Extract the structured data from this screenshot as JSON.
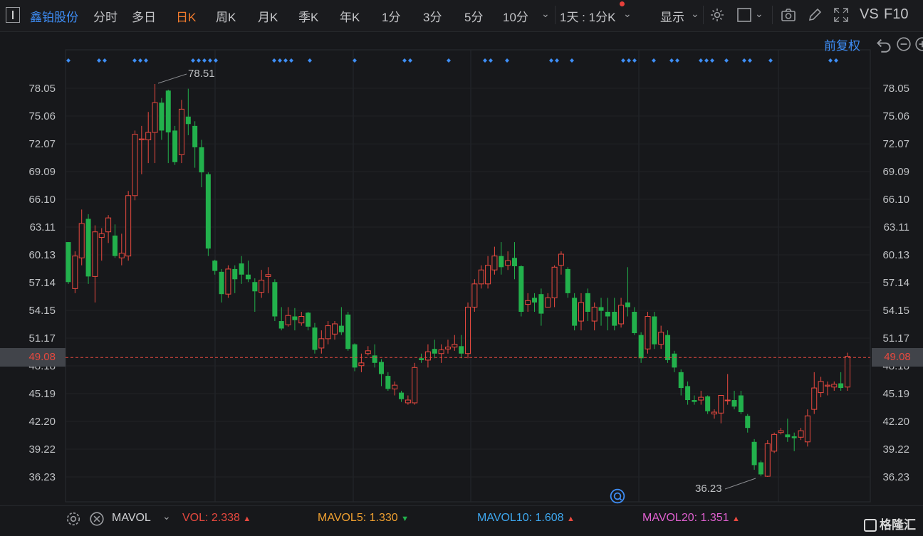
{
  "toolbar": {
    "stock_name": "鑫铂股份",
    "tabs": [
      "分时",
      "多日",
      "日K",
      "周K",
      "月K",
      "季K",
      "年K",
      "1分",
      "3分",
      "5分",
      "10分"
    ],
    "active_tab": "日K",
    "period_select": "1天 : 1分K",
    "display_label": "显示",
    "vs_label": "VS",
    "f10_label": "F10"
  },
  "chart": {
    "adjust_label": "前复权",
    "current_price": "49.08",
    "high_label": "78.51",
    "low_label": "36.23",
    "y_ticks": [
      "78.05",
      "75.06",
      "72.07",
      "69.09",
      "66.10",
      "63.11",
      "60.13",
      "57.14",
      "54.15",
      "51.17",
      "48.18",
      "45.19",
      "42.20",
      "39.22",
      "36.23"
    ],
    "colors": {
      "up": "#e8493f",
      "down": "#22b14c",
      "bg": "#17181b",
      "marker": "#3e8ef7"
    }
  },
  "chart_data": {
    "type": "candlestick",
    "ylim": [
      34.8,
      80.5
    ],
    "candles": [
      [
        61.5,
        57.2,
        61.5,
        57.0
      ],
      [
        56.5,
        60.0,
        60.5,
        56.0
      ],
      [
        59.8,
        63.5,
        65.0,
        59.0
      ],
      [
        64.0,
        57.8,
        64.5,
        57.0
      ],
      [
        57.8,
        62.6,
        63.3,
        55.0
      ],
      [
        62.0,
        62.4,
        63.0,
        59.5
      ],
      [
        62.6,
        64.1,
        64.4,
        61.4
      ],
      [
        62.2,
        60.0,
        63.4,
        59.8
      ],
      [
        59.8,
        60.3,
        62.4,
        59.0
      ],
      [
        60.0,
        66.5,
        67.0,
        59.5
      ],
      [
        66.5,
        73.1,
        73.5,
        66.0
      ],
      [
        72.5,
        72.6,
        74.0,
        68.8
      ],
      [
        72.5,
        73.3,
        75.5,
        70.0
      ],
      [
        73.3,
        76.5,
        78.51,
        70.0
      ],
      [
        76.5,
        73.5,
        77.0,
        72.5
      ],
      [
        77.8,
        73.3,
        77.9,
        70.0
      ],
      [
        73.5,
        70.1,
        74.0,
        69.8
      ],
      [
        70.9,
        75.8,
        76.8,
        70.0
      ],
      [
        75.0,
        74.2,
        78.0,
        73.0
      ],
      [
        74.0,
        71.7,
        74.5,
        69.5
      ],
      [
        71.7,
        69.0,
        72.5,
        67.4
      ],
      [
        68.8,
        60.8,
        69.0,
        60.0
      ],
      [
        59.5,
        58.4,
        59.6,
        58.0
      ],
      [
        58.3,
        55.9,
        58.6,
        55.0
      ],
      [
        55.9,
        58.6,
        59.0,
        55.5
      ],
      [
        58.6,
        57.5,
        59.0,
        56.0
      ],
      [
        59.2,
        58.0,
        60.0,
        57.0
      ],
      [
        58.0,
        57.5,
        59.5,
        57.2
      ],
      [
        57.2,
        56.2,
        57.6,
        54.0
      ],
      [
        56.1,
        57.4,
        58.5,
        55.5
      ],
      [
        57.8,
        58.0,
        58.8,
        56.0
      ],
      [
        57.2,
        53.5,
        57.5,
        53.0
      ],
      [
        53.0,
        52.2,
        54.5,
        52.0
      ],
      [
        52.6,
        53.6,
        54.5,
        52.4
      ],
      [
        53.5,
        53.1,
        54.4,
        52.0
      ],
      [
        52.8,
        53.5,
        54.0,
        52.5
      ],
      [
        53.9,
        52.4,
        54.0,
        52.0
      ],
      [
        52.3,
        49.9,
        52.8,
        49.5
      ],
      [
        50.1,
        51.1,
        52.0,
        49.5
      ],
      [
        51.1,
        52.5,
        53.0,
        50.5
      ],
      [
        51.6,
        52.7,
        53.0,
        51.0
      ],
      [
        52.5,
        51.8,
        54.5,
        51.5
      ],
      [
        53.7,
        50.0,
        54.0,
        49.8
      ],
      [
        50.5,
        48.0,
        50.6,
        47.6
      ],
      [
        48.2,
        48.5,
        49.5,
        47.5
      ],
      [
        49.5,
        49.8,
        50.3,
        49.3
      ],
      [
        49.3,
        48.5,
        50.5,
        48.0
      ],
      [
        48.6,
        47.3,
        48.9,
        46.0
      ],
      [
        47.1,
        45.7,
        47.5,
        45.5
      ],
      [
        45.7,
        46.1,
        46.5,
        45.0
      ],
      [
        45.3,
        44.6,
        45.5,
        44.3
      ],
      [
        44.2,
        44.5,
        45.0,
        44.0
      ],
      [
        44.2,
        48.0,
        48.5,
        44.0
      ],
      [
        49.0,
        48.8,
        49.5,
        48.5
      ],
      [
        48.8,
        49.7,
        50.5,
        48.0
      ],
      [
        50.0,
        49.5,
        51.0,
        49.0
      ],
      [
        49.5,
        49.9,
        50.5,
        48.5
      ],
      [
        50.0,
        50.2,
        51.0,
        49.5
      ],
      [
        50.2,
        50.5,
        51.5,
        49.8
      ],
      [
        50.3,
        49.5,
        51.5,
        49.0
      ],
      [
        49.5,
        54.5,
        55.0,
        49.0
      ],
      [
        54.5,
        57.0,
        57.5,
        54.0
      ],
      [
        57.0,
        58.5,
        59.0,
        56.5
      ],
      [
        57.0,
        59.0,
        60.0,
        56.5
      ],
      [
        58.5,
        60.0,
        61.0,
        58.0
      ],
      [
        60.0,
        58.8,
        61.5,
        58.0
      ],
      [
        59.0,
        59.5,
        60.5,
        58.5
      ],
      [
        59.8,
        58.9,
        61.5,
        57.5
      ],
      [
        58.9,
        54.0,
        59.0,
        53.5
      ],
      [
        54.8,
        55.2,
        56.0,
        54.0
      ],
      [
        55.5,
        55.0,
        56.0,
        54.0
      ],
      [
        55.9,
        53.8,
        56.5,
        52.5
      ],
      [
        54.5,
        55.5,
        56.0,
        54.5
      ],
      [
        55.5,
        58.8,
        59.0,
        54.5
      ],
      [
        59.0,
        60.2,
        60.5,
        58.0
      ],
      [
        58.6,
        56.0,
        58.8,
        55.5
      ],
      [
        55.5,
        52.5,
        56.0,
        52.0
      ],
      [
        53.0,
        55.0,
        56.0,
        52.0
      ],
      [
        56.0,
        54.0,
        56.5,
        53.0
      ],
      [
        53.0,
        54.5,
        55.0,
        52.0
      ],
      [
        54.5,
        54.1,
        55.5,
        52.5
      ],
      [
        54.0,
        53.5,
        55.5,
        52.0
      ],
      [
        54.0,
        52.5,
        55.5,
        52.0
      ],
      [
        52.7,
        54.7,
        55.5,
        52.3
      ],
      [
        55.0,
        54.5,
        58.8,
        53.5
      ],
      [
        54.0,
        51.7,
        54.5,
        51.5
      ],
      [
        51.5,
        49.0,
        51.8,
        48.5
      ],
      [
        50.0,
        53.5,
        54.0,
        49.5
      ],
      [
        53.5,
        50.5,
        54.0,
        50.0
      ],
      [
        50.5,
        51.8,
        52.5,
        50.0
      ],
      [
        51.5,
        48.8,
        52.0,
        48.5
      ],
      [
        49.5,
        48.0,
        49.8,
        47.5
      ],
      [
        47.5,
        45.8,
        47.8,
        45.0
      ],
      [
        46.0,
        44.5,
        46.5,
        44.0
      ],
      [
        44.5,
        44.3,
        45.0,
        44.0
      ],
      [
        44.5,
        44.8,
        45.5,
        44.0
      ],
      [
        44.9,
        43.3,
        45.0,
        43.0
      ],
      [
        43.0,
        43.2,
        43.5,
        42.5
      ],
      [
        43.1,
        45.0,
        45.0,
        42.0
      ],
      [
        44.5,
        44.5,
        47.3,
        44.0
      ],
      [
        44.5,
        43.8,
        45.5,
        43.5
      ],
      [
        45.0,
        43.2,
        45.5,
        43.0
      ],
      [
        42.8,
        41.5,
        43.0,
        41.0
      ],
      [
        40.0,
        37.5,
        40.3,
        37.0
      ],
      [
        37.8,
        36.5,
        38.0,
        36.3
      ],
      [
        36.3,
        39.8,
        40.2,
        36.23
      ],
      [
        39.0,
        40.8,
        41.0,
        38.8
      ],
      [
        41.0,
        41.2,
        41.5,
        40.8
      ],
      [
        40.8,
        40.5,
        42.5,
        40.0
      ],
      [
        40.6,
        40.4,
        41.0,
        39.0
      ],
      [
        40.5,
        41.2,
        41.5,
        40.2
      ],
      [
        40.0,
        42.8,
        43.5,
        39.5
      ],
      [
        43.5,
        45.8,
        47.5,
        43.0
      ],
      [
        45.3,
        46.5,
        47.0,
        44.8
      ],
      [
        46.0,
        46.1,
        46.5,
        45.0
      ],
      [
        45.9,
        46.2,
        46.5,
        45.5
      ],
      [
        46.3,
        45.8,
        47.5,
        45.5
      ],
      [
        45.9,
        49.2,
        49.6,
        45.5
      ]
    ],
    "event_markers": [
      "◆",
      "◆◆",
      "◆◆◆",
      "◆◆◆◆◆",
      "◆◆◆◆",
      "◆",
      "◆",
      "◆◆",
      "◆",
      "◆◆",
      "◆",
      "◆◆",
      "◆",
      "◆◆◆",
      "◆◆◆",
      "◆",
      "◆◆",
      "◆◆◆",
      "◆",
      "◆◆",
      "◆",
      "◆◆"
    ]
  },
  "volume_bar": {
    "mavol_label": "MAVOL",
    "vol": "VOL: 2.338",
    "mavol5": "MAVOL5: 1.330",
    "mavol10": "MAVOL10: 1.608",
    "mavol20": "MAVOL20: 1.351"
  },
  "watermark": "格隆汇"
}
